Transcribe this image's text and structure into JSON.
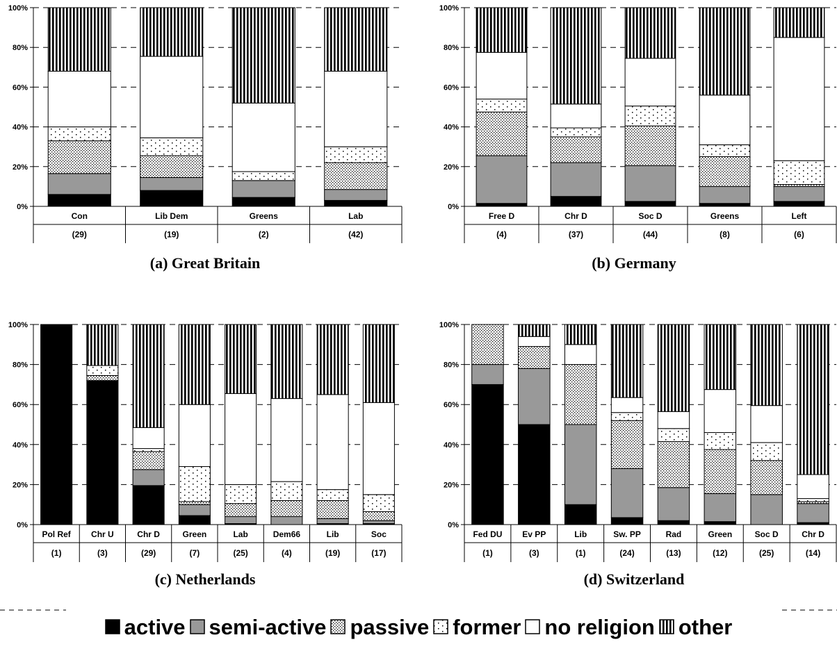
{
  "legend": {
    "placement": "bottom",
    "entries": [
      {
        "key": "active",
        "label": "active",
        "fill": "#000000",
        "pattern": "solid"
      },
      {
        "key": "semi",
        "label": "semi-active",
        "fill": "#999999",
        "pattern": "solid"
      },
      {
        "key": "passive",
        "label": "passive",
        "fill": "#ffffff",
        "pattern": "dense-dots"
      },
      {
        "key": "former",
        "label": "former",
        "fill": "#ffffff",
        "pattern": "sparse-dots"
      },
      {
        "key": "none",
        "label": "no religion",
        "fill": "#ffffff",
        "pattern": "solid"
      },
      {
        "key": "other",
        "label": "other",
        "fill": "#ffffff",
        "pattern": "vertical-stripes"
      }
    ]
  },
  "chart_data": [
    {
      "type": "bar",
      "stacked": true,
      "title": "(a) Great Britain",
      "y_ticks": [
        "0%",
        "20%",
        "40%",
        "60%",
        "80%",
        "100%"
      ],
      "ylim": [
        0,
        100
      ],
      "grid": true,
      "categories": [
        "Con",
        "Lib Dem",
        "Greens",
        "Lab"
      ],
      "counts": [
        "(29)",
        "(19)",
        "(2)",
        "(42)"
      ],
      "series": [
        {
          "name": "active",
          "values": [
            6,
            8,
            4.5,
            3
          ]
        },
        {
          "name": "semi-active",
          "values": [
            10.5,
            6.5,
            8.5,
            5.5
          ]
        },
        {
          "name": "passive",
          "values": [
            16.5,
            11,
            0,
            13.5
          ]
        },
        {
          "name": "former",
          "values": [
            7,
            9,
            4.5,
            8
          ]
        },
        {
          "name": "no religion",
          "values": [
            28,
            41,
            34.5,
            38
          ]
        },
        {
          "name": "other",
          "values": [
            32,
            24.5,
            48,
            32
          ]
        }
      ]
    },
    {
      "type": "bar",
      "stacked": true,
      "title": "(b) Germany",
      "y_ticks": [
        "0%",
        "20%",
        "40%",
        "60%",
        "80%",
        "100%"
      ],
      "ylim": [
        0,
        100
      ],
      "grid": true,
      "categories": [
        "Free D",
        "Chr D",
        "Soc D",
        "Greens",
        "Left"
      ],
      "counts": [
        "(4)",
        "(37)",
        "(44)",
        "(8)",
        "(6)"
      ],
      "series": [
        {
          "name": "active",
          "values": [
            1.5,
            5,
            2.5,
            1.5,
            2.5
          ]
        },
        {
          "name": "semi-active",
          "values": [
            24,
            17,
            18,
            8.5,
            7.5
          ]
        },
        {
          "name": "passive",
          "values": [
            22,
            13,
            20,
            15,
            1
          ]
        },
        {
          "name": "former",
          "values": [
            6.5,
            4.5,
            10,
            6,
            12
          ]
        },
        {
          "name": "no religion",
          "values": [
            23.5,
            12,
            24,
            25,
            62
          ]
        },
        {
          "name": "other",
          "values": [
            22.5,
            48.5,
            25.5,
            44,
            15
          ]
        }
      ]
    },
    {
      "type": "bar",
      "stacked": true,
      "title": "(c) Netherlands",
      "y_ticks": [
        "0%",
        "20%",
        "40%",
        "60%",
        "80%",
        "100%"
      ],
      "ylim": [
        0,
        100
      ],
      "grid": true,
      "categories": [
        "Pol Ref",
        "Chr U",
        "Chr D",
        "Green",
        "Lab",
        "Dem66",
        "Lib",
        "Soc"
      ],
      "counts": [
        "(1)",
        "(3)",
        "(29)",
        "(7)",
        "(25)",
        "(4)",
        "(19)",
        "(17)"
      ],
      "series": [
        {
          "name": "active",
          "values": [
            100,
            72,
            19.5,
            4.5,
            0.5,
            0,
            0.5,
            0.5
          ]
        },
        {
          "name": "semi-active",
          "values": [
            0,
            0,
            8,
            5.5,
            3.5,
            4,
            2.5,
            1.5
          ]
        },
        {
          "name": "passive",
          "values": [
            0,
            2.5,
            9,
            1.5,
            6.5,
            8,
            9,
            4.5
          ]
        },
        {
          "name": "former",
          "values": [
            0,
            5,
            1.5,
            17.5,
            9.5,
            9.5,
            5.5,
            8.5
          ]
        },
        {
          "name": "no religion",
          "values": [
            0,
            0,
            10.5,
            31,
            45.5,
            41.5,
            47.5,
            46
          ]
        },
        {
          "name": "other",
          "values": [
            0,
            20.5,
            51.5,
            40,
            34.5,
            37,
            35,
            39
          ]
        }
      ]
    },
    {
      "type": "bar",
      "stacked": true,
      "title": "(d) Switzerland",
      "y_ticks": [
        "0%",
        "20%",
        "40%",
        "60%",
        "80%",
        "100%"
      ],
      "ylim": [
        0,
        100
      ],
      "grid": true,
      "categories": [
        "Fed DU",
        "Ev PP",
        "Lib",
        "Sw. PP",
        "Rad",
        "Green",
        "Soc D",
        "Chr D"
      ],
      "counts": [
        "(1)",
        "(3)",
        "(1)",
        "(24)",
        "(13)",
        "(12)",
        "(25)",
        "(14)"
      ],
      "series": [
        {
          "name": "active",
          "values": [
            70,
            50,
            10,
            3.5,
            2,
            1.5,
            0,
            1
          ]
        },
        {
          "name": "semi-active",
          "values": [
            10,
            28,
            40,
            24.5,
            16.5,
            14,
            15,
            9.5
          ]
        },
        {
          "name": "passive",
          "values": [
            20,
            11,
            30,
            24,
            23,
            22,
            17,
            1
          ]
        },
        {
          "name": "former",
          "values": [
            0,
            0,
            0,
            4,
            6.5,
            8.5,
            9,
            1.5
          ]
        },
        {
          "name": "no religion",
          "values": [
            0,
            5,
            10,
            7.5,
            8.5,
            21.5,
            18.5,
            12
          ]
        },
        {
          "name": "other",
          "values": [
            0,
            6,
            10,
            36.5,
            43.5,
            32.5,
            40.5,
            75
          ]
        }
      ]
    }
  ]
}
